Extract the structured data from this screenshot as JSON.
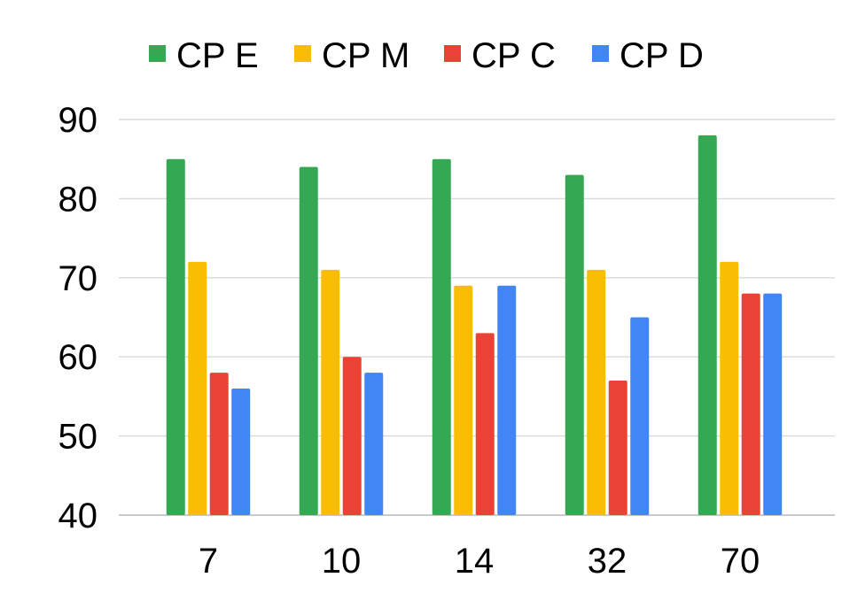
{
  "chart_data": {
    "type": "bar",
    "title": "",
    "xlabel": "",
    "ylabel": "",
    "categories": [
      "7",
      "10",
      "14",
      "32",
      "70"
    ],
    "series": [
      {
        "name": "CP E",
        "color": "#34a853",
        "values": [
          85,
          84,
          85,
          83,
          88
        ]
      },
      {
        "name": "CP M",
        "color": "#fbbc04",
        "values": [
          72,
          71,
          69,
          71,
          72
        ]
      },
      {
        "name": "CP C",
        "color": "#ea4335",
        "values": [
          58,
          60,
          63,
          57,
          68
        ]
      },
      {
        "name": "CP D",
        "color": "#4285f4",
        "values": [
          56,
          58,
          69,
          65,
          68
        ]
      }
    ],
    "ylim": [
      40,
      90
    ],
    "yticks": [
      40,
      50,
      60,
      70,
      80,
      90
    ],
    "grid": true,
    "legend_position": "top"
  }
}
